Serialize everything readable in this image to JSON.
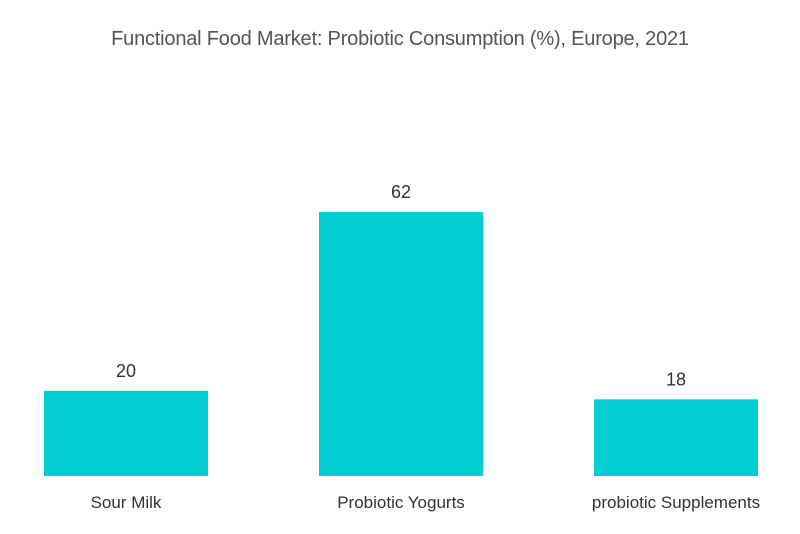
{
  "chart_data": {
    "type": "bar",
    "title": "Functional Food Market: Probiotic Consumption (%), Europe, 2021",
    "categories": [
      "Sour Milk",
      "Probiotic Yogurts",
      "probiotic Supplements"
    ],
    "values": [
      20,
      62,
      18
    ],
    "xlabel": "",
    "ylabel": "",
    "ylim": [
      0,
      62
    ],
    "grid": false,
    "legend": "none",
    "bar_color": "#00CED1",
    "data_labels": true
  }
}
